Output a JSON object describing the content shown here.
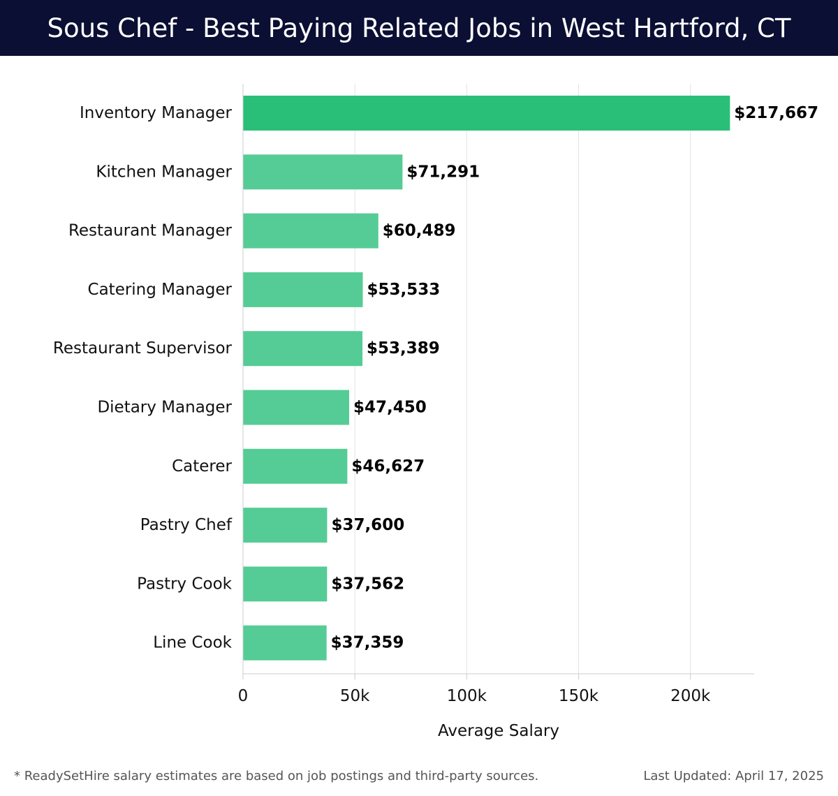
{
  "header": {
    "title": "Sous Chef - Best Paying Related Jobs in West Hartford, CT"
  },
  "footer": {
    "note": "* ReadySetHire salary estimates are based on job postings and third-party sources.",
    "updated": "Last Updated: April 17, 2025"
  },
  "chart_data": {
    "type": "bar",
    "orientation": "horizontal",
    "title": "Sous Chef - Best Paying Related Jobs in West Hartford, CT",
    "xlabel": "Average Salary",
    "ylabel": "",
    "categories": [
      "Inventory Manager",
      "Kitchen Manager",
      "Restaurant Manager",
      "Catering Manager",
      "Restaurant Supervisor",
      "Dietary Manager",
      "Caterer",
      "Pastry Chef",
      "Pastry Cook",
      "Line Cook"
    ],
    "values": [
      217667,
      71291,
      60489,
      53533,
      53389,
      47450,
      46627,
      37600,
      37562,
      37359
    ],
    "value_labels": [
      "$217,667",
      "$71,291",
      "$60,489",
      "$53,533",
      "$53,389",
      "$47,450",
      "$46,627",
      "$37,600",
      "$37,562",
      "$37,359"
    ],
    "xlim": [
      0,
      228500
    ],
    "ticks": [
      0,
      50000,
      100000,
      150000,
      200000
    ],
    "tick_labels": [
      "0",
      "50k",
      "100k",
      "150k",
      "200k"
    ],
    "grid": true,
    "colors": {
      "highlight": "#2abf78",
      "bar": "#55cc95",
      "grid": "#e3e3e3",
      "axis": "#cccccc"
    }
  }
}
